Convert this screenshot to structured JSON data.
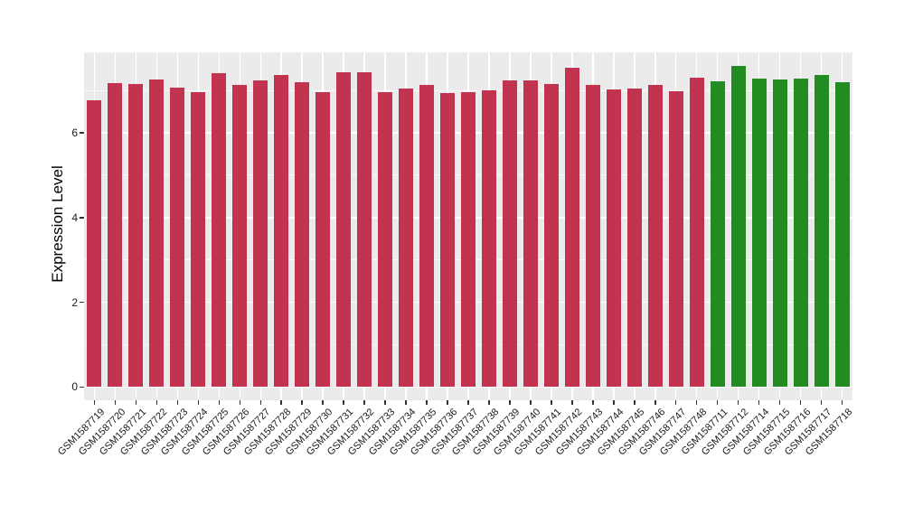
{
  "figure": {
    "background": "#FFFFFF",
    "panel_background": "#EBEBEB",
    "grid_color": "#FFFFFF",
    "axis_text_color": "#1A1A1A",
    "axis_title_color": "#000000"
  },
  "chart_data": {
    "type": "bar",
    "title": "",
    "xlabel": "",
    "ylabel": "Expression Level",
    "ylim": [
      -0.31,
      7.9
    ],
    "yticks": [
      0,
      2,
      4,
      6
    ],
    "ytick_labels": [
      "0",
      "2",
      "4",
      "6"
    ],
    "yticks_minor": [
      1,
      3,
      5,
      7
    ],
    "grid": true,
    "legend_position": "none",
    "x_tick_rotation": 45,
    "categories": [
      "GSM1587719",
      "GSM1587720",
      "GSM1587721",
      "GSM1587722",
      "GSM1587723",
      "GSM1587724",
      "GSM1587725",
      "GSM1587726",
      "GSM1587727",
      "GSM1587728",
      "GSM1587729",
      "GSM1587730",
      "GSM1587731",
      "GSM1587732",
      "GSM1587733",
      "GSM1587734",
      "GSM1587735",
      "GSM1587736",
      "GSM1587737",
      "GSM1587738",
      "GSM1587739",
      "GSM1587740",
      "GSM1587741",
      "GSM1587742",
      "GSM1587743",
      "GSM1587744",
      "GSM1587745",
      "GSM1587746",
      "GSM1587747",
      "GSM1587748",
      "GSM1587711",
      "GSM1587712",
      "GSM1587714",
      "GSM1587715",
      "GSM1587716",
      "GSM1587717",
      "GSM1587718"
    ],
    "values": [
      6.78,
      7.17,
      7.16,
      7.27,
      7.07,
      6.97,
      7.4,
      7.14,
      7.23,
      7.36,
      7.19,
      6.97,
      7.43,
      7.44,
      6.97,
      7.05,
      7.13,
      6.95,
      6.97,
      7.01,
      7.24,
      7.24,
      7.16,
      7.53,
      7.14,
      7.02,
      7.05,
      7.14,
      6.99,
      7.31,
      7.22,
      7.57,
      7.29,
      7.27,
      7.29,
      7.36,
      7.2
    ],
    "bar_groups": [
      {
        "name": "group-red",
        "color": "#C23350",
        "from": 0,
        "to": 29
      },
      {
        "name": "group-green",
        "color": "#228B22",
        "from": 30,
        "to": 36
      }
    ]
  }
}
